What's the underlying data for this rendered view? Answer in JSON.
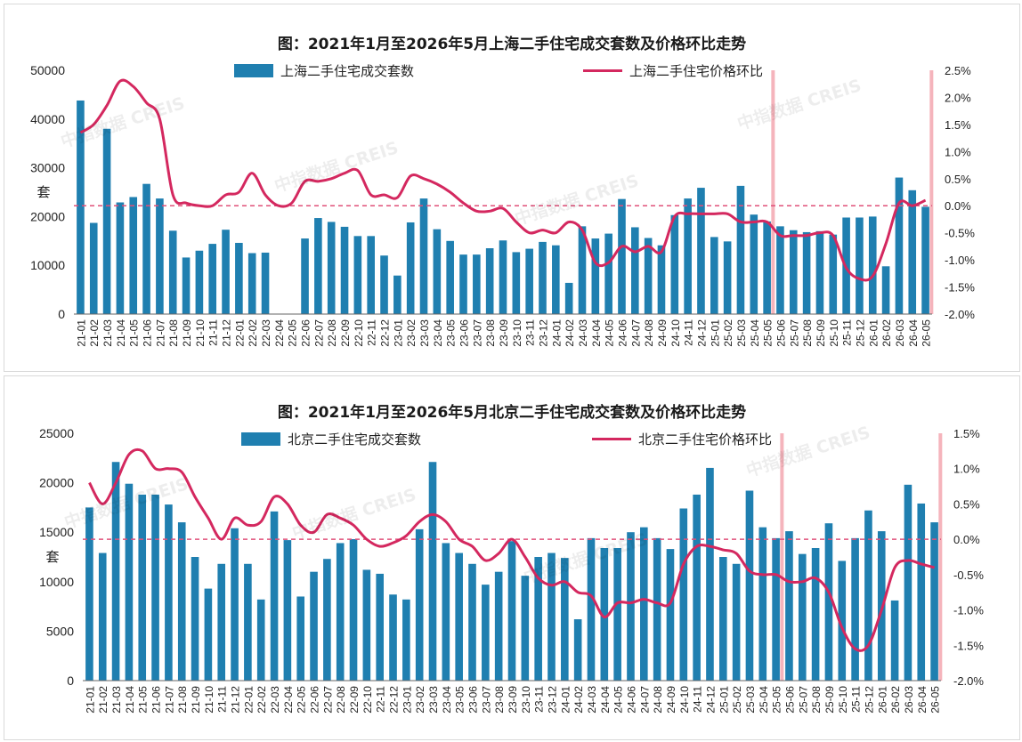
{
  "charts": [
    {
      "title": "图：2021年1月至2026年5月上海二手住宅成交套数及价格环比走势",
      "bar_legend": "上海二手住宅成交套数",
      "line_legend": "上海二手住宅价格环比",
      "ylabel_left": "套",
      "watermarks": [
        "中指数据 CREIS",
        "中指数据 CREIS",
        "中指数据 CREIS",
        "中指数据 CREIS"
      ]
    },
    {
      "title": "图：2021年1月至2026年5月北京二手住宅成交套数及价格环比走势",
      "bar_legend": "北京二手住宅成交套数",
      "line_legend": "北京二手住宅价格环比",
      "ylabel_left": "套",
      "watermarks": [
        "中指数据 CREIS",
        "中指数据 CREIS",
        "中指数据 CREIS",
        "中指数据 CREIS"
      ]
    }
  ],
  "colors": {
    "bar": "#1f7fb0",
    "line": "#d4285f",
    "zero_ref": "#e0507a",
    "highlight": "#f5b4bc"
  },
  "chart_data": [
    {
      "type": "bar+line",
      "categories": [
        "21-01",
        "21-02",
        "21-03",
        "21-04",
        "21-05",
        "21-06",
        "21-07",
        "21-08",
        "21-09",
        "21-10",
        "21-11",
        "21-12",
        "22-01",
        "22-02",
        "22-03",
        "22-04",
        "22-05",
        "22-06",
        "22-07",
        "22-08",
        "22-09",
        "22-10",
        "22-11",
        "22-12",
        "23-01",
        "23-02",
        "23-03",
        "23-04",
        "23-05",
        "23-06",
        "23-07",
        "23-08",
        "23-09",
        "23-10",
        "23-11",
        "23-12",
        "24-01",
        "24-02",
        "24-03",
        "24-04",
        "24-05",
        "24-06",
        "24-07",
        "24-08",
        "24-09",
        "24-10",
        "24-11",
        "24-12",
        "25-01",
        "25-02",
        "25-03",
        "25-04",
        "25-05",
        "25-06",
        "25-07",
        "25-08",
        "25-09",
        "25-10",
        "25-11",
        "25-12",
        "26-01",
        "26-02",
        "26-03",
        "26-04",
        "26-05"
      ],
      "series": [
        {
          "name": "上海二手住宅成交套数",
          "axis": "left",
          "type": "bar",
          "values": [
            43800,
            18700,
            38000,
            22900,
            24000,
            26700,
            23700,
            17100,
            11600,
            13000,
            14400,
            17300,
            14600,
            12500,
            12600,
            null,
            null,
            15500,
            19700,
            18900,
            17900,
            16000,
            16000,
            12000,
            7900,
            18800,
            23700,
            17400,
            15000,
            12200,
            12200,
            13500,
            15100,
            12700,
            13400,
            14800,
            14100,
            6400,
            18000,
            15500,
            16500,
            23600,
            17800,
            15600,
            14100,
            20300,
            23700,
            25900,
            15800,
            14900,
            26300,
            20400,
            19000,
            18000,
            17200,
            16800,
            17000,
            16300,
            19800,
            19800,
            20000,
            9800,
            28000,
            25400,
            22000
          ]
        },
        {
          "name": "上海二手住宅价格环比",
          "axis": "right",
          "type": "line",
          "values": [
            1.35,
            1.5,
            1.85,
            2.3,
            2.2,
            1.9,
            1.6,
            0.2,
            0.05,
            0.0,
            0.0,
            0.2,
            0.25,
            0.6,
            0.2,
            0.0,
            0.05,
            0.45,
            0.45,
            0.5,
            0.6,
            0.65,
            0.2,
            0.2,
            0.15,
            0.55,
            0.5,
            0.4,
            0.25,
            0.05,
            -0.1,
            -0.1,
            -0.05,
            -0.3,
            -0.5,
            -0.45,
            -0.5,
            -0.3,
            -0.45,
            -1.05,
            -1.05,
            -0.75,
            -0.85,
            -0.75,
            -0.85,
            -0.2,
            -0.15,
            -0.15,
            -0.15,
            -0.15,
            -0.3,
            -0.3,
            -0.3,
            -0.55,
            -0.55,
            -0.55,
            -0.5,
            -0.55,
            -1.15,
            -1.35,
            -1.3,
            -0.7,
            0.05,
            0.0,
            0.1
          ]
        }
      ],
      "left_axis": {
        "range": [
          0,
          50000
        ],
        "ticks": [
          "0",
          "10000",
          "20000",
          "30000",
          "40000",
          "50000"
        ]
      },
      "right_axis": {
        "range": [
          -2.0,
          2.5
        ],
        "ticks": [
          "-2.0%",
          "-1.5%",
          "-1.0%",
          "-0.5%",
          "0.0%",
          "0.5%",
          "1.0%",
          "1.5%",
          "2.0%",
          "2.5%"
        ]
      },
      "reference_line": 0.0,
      "highlighted_categories": [
        "25-05",
        "26-05"
      ]
    },
    {
      "type": "bar+line",
      "categories": [
        "21-01",
        "21-02",
        "21-03",
        "21-04",
        "21-05",
        "21-06",
        "21-07",
        "21-08",
        "21-09",
        "21-10",
        "21-11",
        "21-12",
        "22-01",
        "22-02",
        "22-03",
        "22-04",
        "22-05",
        "22-06",
        "22-07",
        "22-08",
        "22-09",
        "22-10",
        "22-11",
        "22-12",
        "23-01",
        "23-02",
        "23-03",
        "23-04",
        "23-05",
        "23-06",
        "23-07",
        "23-08",
        "23-09",
        "23-10",
        "23-11",
        "23-12",
        "24-01",
        "24-02",
        "24-03",
        "24-04",
        "24-05",
        "24-06",
        "24-07",
        "24-08",
        "24-09",
        "24-10",
        "24-11",
        "24-12",
        "25-01",
        "25-02",
        "25-03",
        "25-04",
        "25-05",
        "25-06",
        "25-07",
        "25-08",
        "25-09",
        "25-10",
        "25-11",
        "25-12",
        "26-01",
        "26-02",
        "26-03",
        "26-04",
        "26-05"
      ],
      "series": [
        {
          "name": "北京二手住宅成交套数",
          "axis": "left",
          "type": "bar",
          "values": [
            17500,
            12900,
            22100,
            19900,
            18800,
            18800,
            17800,
            16000,
            12500,
            9300,
            11800,
            15400,
            11800,
            8200,
            17100,
            14200,
            8500,
            11000,
            12300,
            13900,
            14300,
            11200,
            10800,
            8700,
            8200,
            15300,
            22100,
            13900,
            12900,
            11800,
            9700,
            11000,
            14100,
            10600,
            12500,
            12900,
            12400,
            6200,
            14400,
            13400,
            13400,
            15000,
            15500,
            14400,
            13300,
            17400,
            18800,
            21500,
            12500,
            11800,
            19200,
            15500,
            14400,
            15100,
            12800,
            13400,
            15900,
            12100,
            14400,
            17200,
            15100,
            8100,
            19800,
            17900,
            16000
          ]
        },
        {
          "name": "北京二手住宅价格环比",
          "axis": "right",
          "type": "line",
          "values": [
            0.8,
            0.5,
            0.8,
            1.2,
            1.25,
            1.0,
            1.0,
            0.95,
            0.6,
            0.3,
            0.0,
            0.3,
            0.2,
            0.25,
            0.6,
            0.5,
            0.2,
            0.1,
            0.35,
            0.3,
            0.2,
            0.0,
            -0.1,
            -0.05,
            0.05,
            0.25,
            0.35,
            0.25,
            0.0,
            -0.1,
            -0.3,
            -0.2,
            0.0,
            -0.25,
            -0.55,
            -0.65,
            -0.6,
            -0.75,
            -0.8,
            -1.1,
            -0.9,
            -0.9,
            -0.85,
            -0.9,
            -0.9,
            -0.35,
            -0.1,
            -0.1,
            -0.15,
            -0.2,
            -0.45,
            -0.5,
            -0.5,
            -0.6,
            -0.6,
            -0.55,
            -0.75,
            -1.25,
            -1.55,
            -1.5,
            -1.0,
            -0.4,
            -0.3,
            -0.35,
            -0.4
          ]
        }
      ],
      "left_axis": {
        "range": [
          0,
          25000
        ],
        "ticks": [
          "0",
          "5000",
          "10000",
          "15000",
          "20000",
          "25000"
        ]
      },
      "right_axis": {
        "range": [
          -2.0,
          1.5
        ],
        "ticks": [
          "-2.0%",
          "-1.5%",
          "-1.0%",
          "-0.5%",
          "0.0%",
          "0.5%",
          "1.0%",
          "1.5%"
        ]
      },
      "reference_line": 0.0,
      "highlighted_categories": [
        "25-05",
        "26-05"
      ]
    }
  ]
}
